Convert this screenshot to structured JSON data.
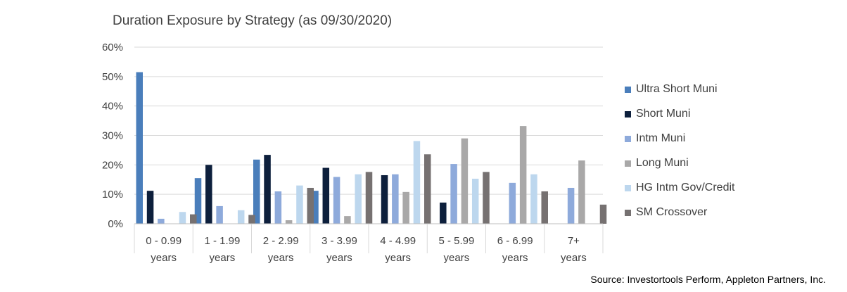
{
  "chart_data": {
    "type": "bar",
    "title": "Duration Exposure by Strategy (as 09/30/2020)",
    "xlabel": "",
    "ylabel": "",
    "ylim": [
      0,
      60
    ],
    "yticks": [
      "0%",
      "10%",
      "20%",
      "30%",
      "40%",
      "50%",
      "60%"
    ],
    "grid": true,
    "legend_position": "right",
    "categories": [
      [
        "0 - 0.99",
        "years"
      ],
      [
        "1 - 1.99",
        "years"
      ],
      [
        "2 - 2.99",
        "years"
      ],
      [
        "3 - 3.99",
        "years"
      ],
      [
        "4 - 4.99",
        "years"
      ],
      [
        "5 - 5.99",
        "years"
      ],
      [
        "6 - 6.99",
        "years"
      ],
      [
        "7+",
        "years"
      ]
    ],
    "series": [
      {
        "name": "Ultra Short Muni",
        "color": "#4a7ebb",
        "values": [
          51.5,
          15.5,
          21.8,
          11.2,
          0,
          0,
          0,
          0
        ]
      },
      {
        "name": "Short Muni",
        "color": "#0d1f3c",
        "values": [
          11.2,
          20.0,
          23.4,
          19.0,
          16.5,
          7.2,
          0,
          0
        ]
      },
      {
        "name": "Intm Muni",
        "color": "#8eaadb",
        "values": [
          1.7,
          6.0,
          11.0,
          15.9,
          16.8,
          20.3,
          13.9,
          12.2
        ]
      },
      {
        "name": "Long Muni",
        "color": "#a9a8a8",
        "values": [
          0,
          0,
          1.2,
          2.6,
          10.8,
          29.0,
          33.2,
          21.5
        ]
      },
      {
        "name": "HG Intm Gov/Credit",
        "color": "#bdd7ee",
        "values": [
          4.0,
          4.6,
          13.0,
          16.8,
          28.1,
          15.3,
          16.8,
          0
        ]
      },
      {
        "name": "SM Crossover",
        "color": "#767171",
        "values": [
          3.2,
          3.0,
          12.2,
          17.6,
          23.6,
          17.6,
          11.0,
          6.5
        ]
      }
    ],
    "source": "Source: Investortools Perform, Appleton Partners, Inc."
  }
}
